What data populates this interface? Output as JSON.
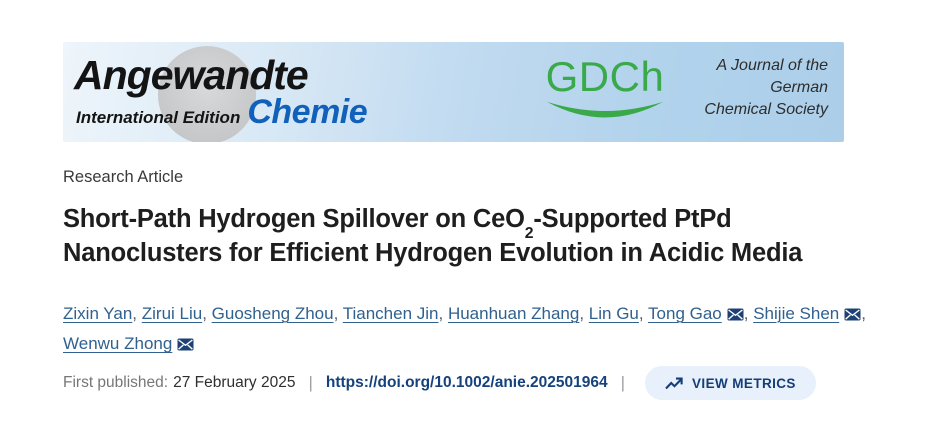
{
  "banner": {
    "angewandte": "Angewandte",
    "edition": "International Edition",
    "chemie": "Chemie",
    "gdch": "GDCh",
    "tagline": [
      "A Journal of the",
      "German",
      "Chemical Society"
    ]
  },
  "article": {
    "type_label": "Research Article",
    "title": {
      "line1_pre": "Short-Path Hydrogen Spillover on CeO",
      "line1_sub": "2",
      "line1_post": "-Supported PtPd",
      "line2": "Nanoclusters for Efficient Hydrogen Evolution in Acidic Media"
    },
    "authors": [
      {
        "name": "Zixin Yan",
        "email": false
      },
      {
        "name": "Zirui Liu",
        "email": false
      },
      {
        "name": "Guosheng Zhou",
        "email": false
      },
      {
        "name": "Tianchen Jin",
        "email": false
      },
      {
        "name": "Huanhuan Zhang",
        "email": false
      },
      {
        "name": "Lin Gu",
        "email": false
      },
      {
        "name": "Tong Gao",
        "email": true
      },
      {
        "name": "Shijie Shen",
        "email": true
      },
      {
        "name": "Wenwu Zhong",
        "email": true
      }
    ],
    "published_label": "First published:",
    "published_date": "27 February 2025",
    "separator": "|",
    "doi": "https://doi.org/10.1002/anie.202501964",
    "view_metrics_label": "VIEW METRICS"
  },
  "colors": {
    "chemie_blue": "#1161ba",
    "gdch_green": "#3aa94a",
    "author_link_blue": "#30618f",
    "envelope_navy": "#1d4076",
    "doi_navy": "#16427c",
    "metrics_text": "#143e78",
    "metrics_bg": "#e8f0fb",
    "banner_blue_right": "#accee9",
    "banner_blue_left": "#eef5fb",
    "circle_gray": "#c9cacc"
  }
}
